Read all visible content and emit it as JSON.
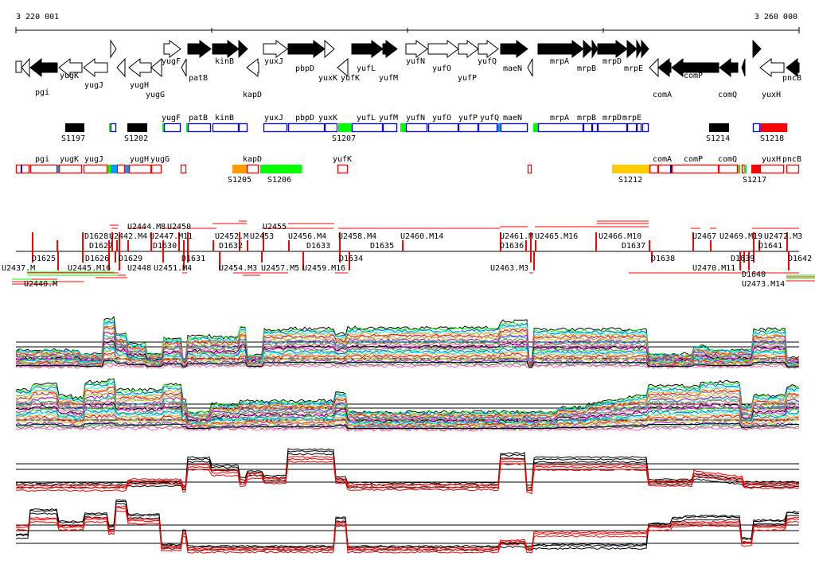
{
  "scale": {
    "start_label": "3 220 001",
    "end_label": "3 260 000"
  },
  "gene_track": {
    "genes": [
      "",
      "",
      "pgi",
      "yugK",
      "yugJ",
      "",
      "",
      "yugH",
      "yugG",
      "yugF",
      "",
      "patB",
      "kinB",
      "",
      "kapD",
      "yuxJ",
      "pbpD",
      "yuxK",
      "yufK",
      "yufL",
      "yufM",
      "yufN",
      "yufO",
      "yufP",
      "yufQ",
      "maeN",
      "",
      "mrpA",
      "mrpB",
      "",
      "mrpD",
      "mrpE",
      "",
      "",
      "comA",
      "",
      "comP",
      "comQ",
      "",
      "",
      "yuxH",
      "pncB"
    ]
  },
  "forward_track": {
    "labels": [
      "yugF",
      "patB",
      "kinB",
      "yuxJ",
      "pbpD",
      "yuxK",
      "yufL",
      "yufM",
      "yufN",
      "yufO",
      "yufP",
      "yufQ",
      "maeN",
      "mrpA",
      "mrpB",
      "mrpD",
      "mrpE"
    ],
    "segments": [
      "S1197",
      "S1202",
      "S1207",
      "S1214",
      "S1218"
    ]
  },
  "reverse_track": {
    "labels": [
      "pgi",
      "yugK",
      "yugJ",
      "yugH",
      "yugG",
      "kapD",
      "yufK",
      "comA",
      "comP",
      "comQ",
      "yuxH",
      "pncB"
    ],
    "segments": [
      "S1205",
      "S1206",
      "S1212",
      "S1217"
    ]
  },
  "feature_track": {
    "above": [
      "U2442.M4",
      "U2444.M8",
      "U2447.M11",
      "U2450",
      "U2452.M",
      "U2453",
      "U2455",
      "U2456.M4",
      "U2458.M4",
      "U2460.M14",
      "U2461.M",
      "U2465.M16",
      "U2466.M10",
      "U2467",
      "U2469.M19",
      "U2472.M3"
    ],
    "above_d": [
      "D1627",
      "D1628",
      "D1630",
      "D1632",
      "D1633",
      "D1635",
      "D1636",
      "D1637",
      "D1641"
    ],
    "below_d": [
      "D1625",
      "D1626",
      "D1629",
      "D1631",
      "D1634",
      "D1638",
      "D1639",
      "D1640",
      "D1642"
    ],
    "below": [
      "U2437.M",
      "U2440.M",
      "U2445.M16",
      "U2448",
      "U2451.M4",
      "U2454.M3",
      "U2457.M5",
      "U2459.M16",
      "U2463.M3",
      "U2470.M11",
      "U2473.M14"
    ]
  },
  "colors": {
    "forward_box": "#0000ff",
    "reverse_box": "#ff0000",
    "green": "#00ff00",
    "cyan": "#0099ff",
    "orange": "#ff9900",
    "gold": "#ffcc00",
    "marker": "#ff0000"
  }
}
